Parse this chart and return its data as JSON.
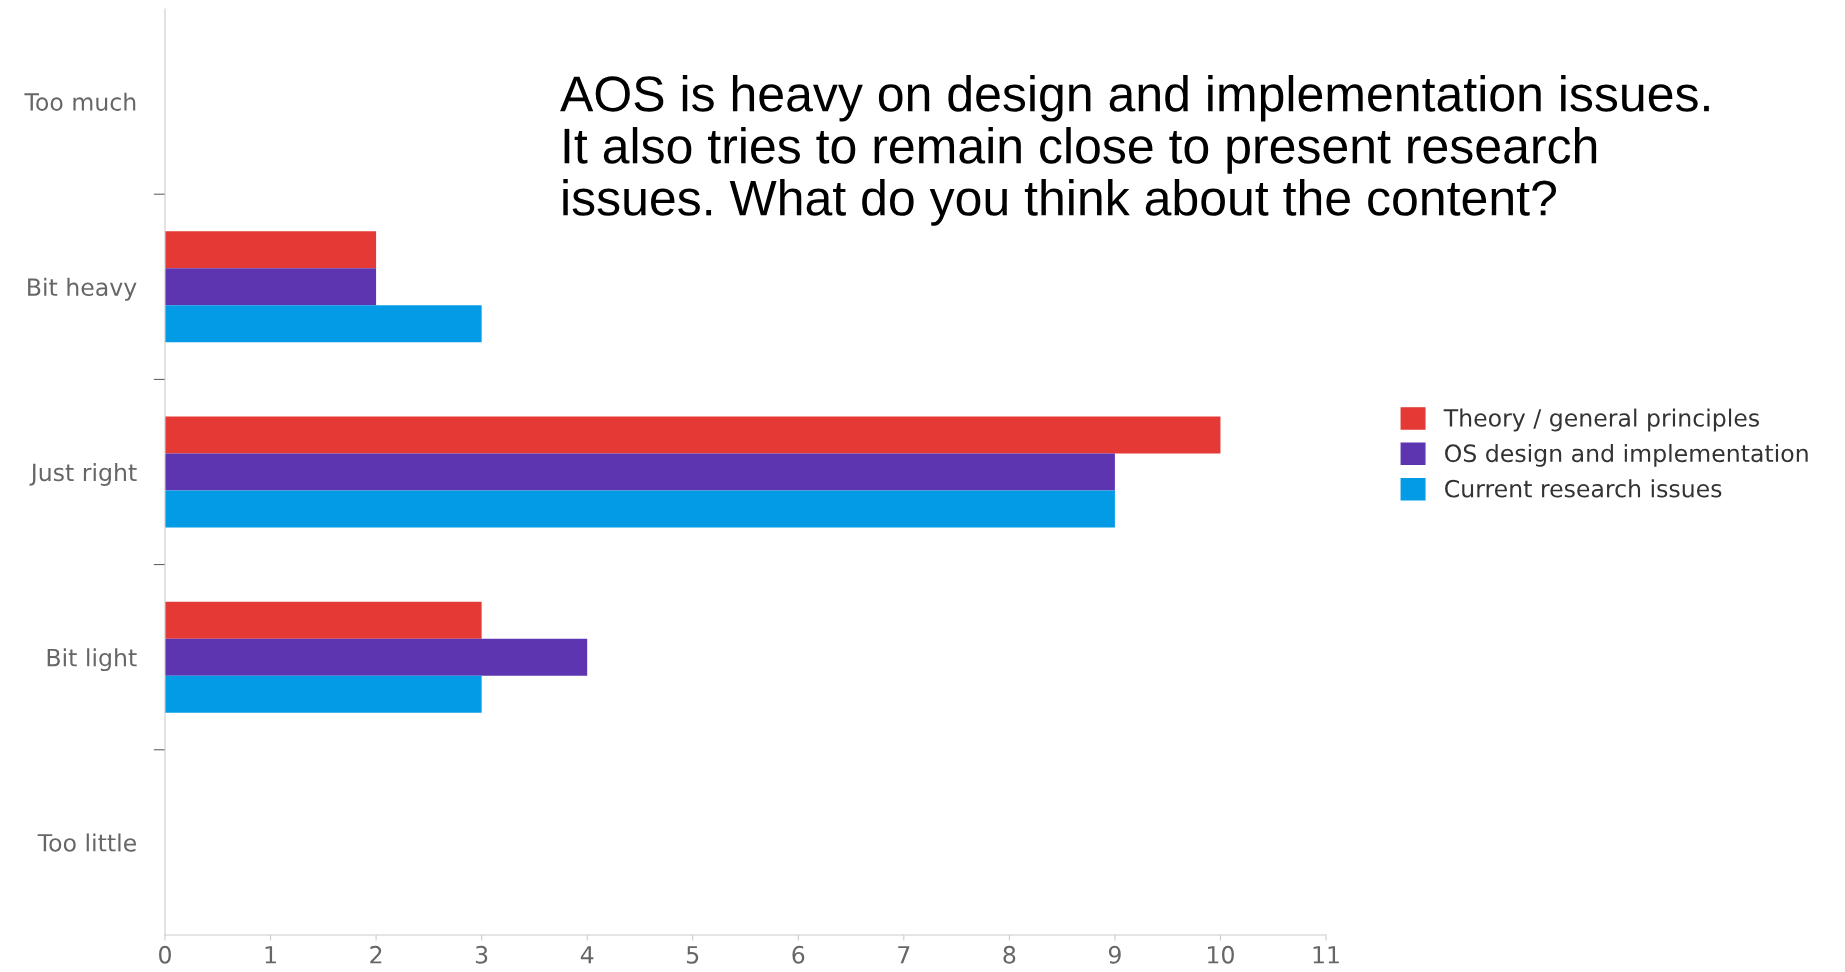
{
  "chart_data": {
    "type": "bar",
    "orientation": "horizontal",
    "categories": [
      "Too much",
      "Bit heavy",
      "Just right",
      "Bit light",
      "Too little"
    ],
    "series": [
      {
        "name": "Theory / general principles",
        "color": "#e53935",
        "values": [
          0,
          2,
          10,
          3,
          0
        ]
      },
      {
        "name": "OS design and implementation",
        "color": "#5e35b1",
        "values": [
          0,
          2,
          9,
          4,
          0
        ]
      },
      {
        "name": "Current research issues",
        "color": "#039be5",
        "values": [
          0,
          3,
          9,
          3,
          0
        ]
      }
    ],
    "xlim": [
      0,
      11
    ],
    "xticks": [
      0,
      1,
      2,
      3,
      4,
      5,
      6,
      7,
      8,
      9,
      10,
      11
    ],
    "annotations": [
      "AOS is heavy on design and implementation issues.\nIt also tries to remain close to present research\nissues. What do you think about the content?"
    ],
    "legend": "right",
    "grid": false
  }
}
